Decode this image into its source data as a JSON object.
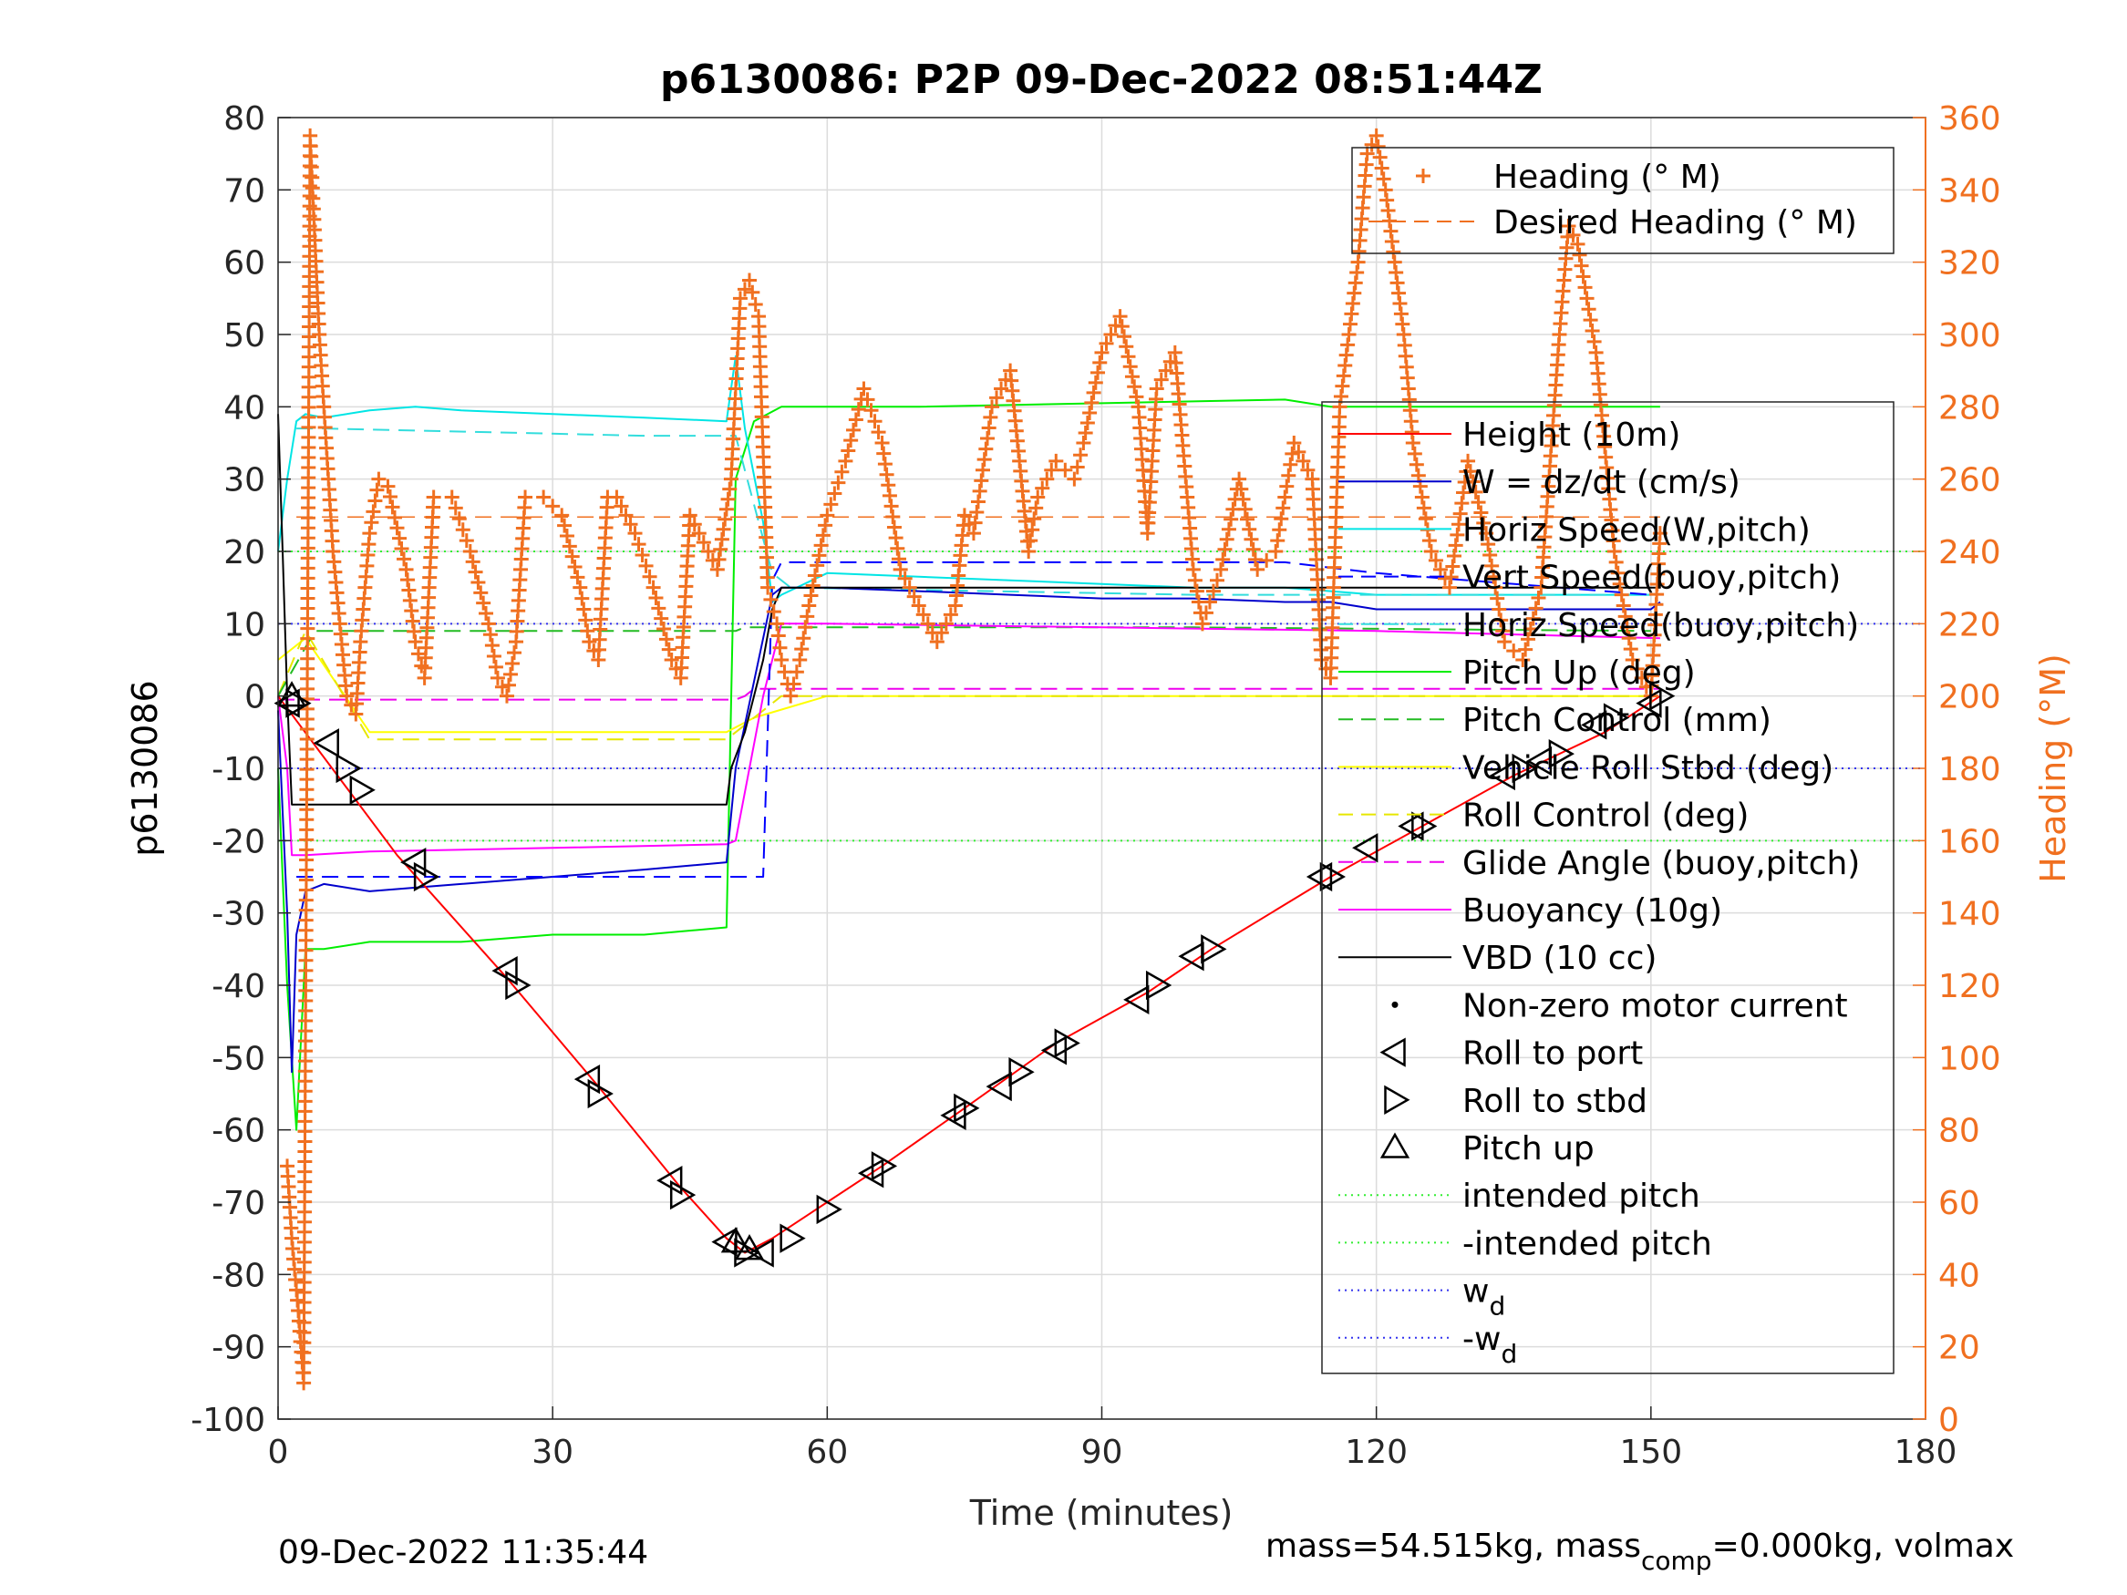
{
  "chart_data": {
    "type": "line",
    "title": "p6130086: P2P 09-Dec-2022 08:51:44Z",
    "xlabel": "Time (minutes)",
    "ylabel": "p6130086",
    "y2label": "Heading (°M)",
    "xlim": [
      0,
      180
    ],
    "ylim": [
      -100,
      80
    ],
    "y2lim": [
      0,
      360
    ],
    "xticks": [
      "0",
      "30",
      "60",
      "90",
      "120",
      "150",
      "180"
    ],
    "yticks": [
      "80",
      "70",
      "60",
      "50",
      "40",
      "30",
      "20",
      "10",
      "0",
      "-10",
      "-20",
      "-30",
      "-40",
      "-50",
      "-60",
      "-70",
      "-80",
      "-90",
      "-100"
    ],
    "y2ticks": [
      "360",
      "340",
      "320",
      "300",
      "280",
      "260",
      "240",
      "220",
      "200",
      "180",
      "160",
      "140",
      "120",
      "100",
      "80",
      "60",
      "40",
      "20",
      "0"
    ],
    "grid": true,
    "footer_left": "09-Dec-2022 11:35:44",
    "footer_right": {
      "a": "mass=54.515kg, mass",
      "sub": "comp",
      "b": "=0.000kg, volmax"
    },
    "colors": {
      "height": "#ff0000",
      "w": "#0000cc",
      "horiz_w": "#00e5e5",
      "vert_buoy": "#0000ff",
      "horiz_buoy": "#33dddd",
      "pitch": "#00ee00",
      "pitch_ctl": "#22bb22",
      "roll": "#ffff00",
      "roll_ctl": "#e6e600",
      "glide": "#ee00ee",
      "buoy": "#ff00ff",
      "vbd": "#000000",
      "heading": "#f07020",
      "desired_heading": "#f07020",
      "intended": "#33ee33",
      "wd": "#3333ee"
    },
    "legend_heading": [
      {
        "label": "Heading (° M)",
        "style": "plus",
        "color": "#f07020"
      },
      {
        "label": "Desired Heading (° M)",
        "style": "dash",
        "color": "#f07020"
      }
    ],
    "legend_main": [
      {
        "label": "Height (10m)",
        "style": "line",
        "color": "#ff0000"
      },
      {
        "label": "W = dz/dt (cm/s)",
        "style": "line",
        "color": "#0000cc"
      },
      {
        "label": "Horiz Speed(W,pitch)",
        "style": "line",
        "color": "#00e5e5"
      },
      {
        "label": "Vert Speed(buoy,pitch)",
        "style": "dash",
        "color": "#0000ff"
      },
      {
        "label": "Horiz Speed(buoy,pitch)",
        "style": "dash",
        "color": "#33dddd"
      },
      {
        "label": "Pitch Up (deg)",
        "style": "line",
        "color": "#00ee00"
      },
      {
        "label": "Pitch Control (mm)",
        "style": "dash",
        "color": "#22bb22"
      },
      {
        "label": "Vehicle Roll Stbd (deg)",
        "style": "line",
        "color": "#ffff00"
      },
      {
        "label": "Roll Control (deg)",
        "style": "dash",
        "color": "#e6e600"
      },
      {
        "label": "Glide Angle (buoy,pitch)",
        "style": "dash",
        "color": "#ee00ee"
      },
      {
        "label": "Buoyancy (10g)",
        "style": "line",
        "color": "#ff00ff"
      },
      {
        "label": "VBD (10 cc)",
        "style": "line",
        "color": "#000000"
      },
      {
        "label": "Non-zero motor current",
        "style": "dot",
        "color": "#000000"
      },
      {
        "label": "Roll to port",
        "style": "tri-left",
        "color": "#000000"
      },
      {
        "label": "Roll to stbd",
        "style": "tri-right",
        "color": "#000000"
      },
      {
        "label": "Pitch up",
        "style": "tri-up",
        "color": "#000000"
      },
      {
        "label": "intended pitch",
        "style": "dotted",
        "color": "#33ee33"
      },
      {
        "label": "-intended pitch",
        "style": "dotted",
        "color": "#33ee33"
      },
      {
        "label": "w",
        "sub": "d",
        "style": "dotted",
        "color": "#3333ee"
      },
      {
        "label": "-w",
        "sub": "d",
        "style": "dotted",
        "color": "#3333ee"
      }
    ],
    "series": [
      {
        "name": "Height (10m)",
        "x": [
          0,
          13,
          25,
          35,
          44,
          49,
          51,
          54,
          60,
          66,
          75,
          85,
          95,
          102,
          115,
          125,
          135,
          145,
          151
        ],
        "y": [
          0,
          -22,
          -39,
          -54,
          -68,
          -75,
          -77,
          -75,
          -70,
          -65,
          -57,
          -48,
          -41,
          -35,
          -25,
          -18,
          -11,
          -5,
          0
        ]
      },
      {
        "name": "W = dz/dt (cm/s)",
        "x": [
          0,
          1,
          1.5,
          2,
          3,
          5,
          10,
          20,
          30,
          40,
          49,
          50,
          53,
          54,
          55,
          60,
          70,
          80,
          90,
          100,
          110,
          115,
          120,
          130,
          140,
          150,
          151
        ],
        "y": [
          -2,
          -30,
          -52,
          -33,
          -27,
          -26,
          -27,
          -26,
          -25,
          -24,
          -23,
          -10,
          8,
          14,
          15,
          15,
          14.5,
          14,
          13.5,
          13.5,
          13,
          13,
          12,
          12,
          12,
          12,
          13
        ]
      },
      {
        "name": "Horiz Speed(W,pitch)",
        "x": [
          0,
          1,
          2,
          3,
          5,
          10,
          15,
          20,
          30,
          40,
          49,
          50,
          51,
          53,
          54,
          55,
          60,
          70,
          80,
          90,
          100,
          110,
          115,
          120,
          130,
          140,
          150
        ],
        "y": [
          20,
          30,
          38,
          39,
          38.5,
          39.5,
          40,
          39.5,
          39,
          38.5,
          38,
          47,
          37,
          24,
          13,
          14,
          17,
          16.5,
          16,
          15.5,
          15,
          15,
          14.5,
          14,
          14,
          14,
          14
        ]
      },
      {
        "name": "Vert Speed(buoy,pitch)",
        "x": [
          2,
          53,
          54,
          55,
          75,
          110,
          120,
          150
        ],
        "y": [
          -25,
          -25,
          16,
          18.5,
          18.5,
          18.5,
          17,
          14
        ]
      },
      {
        "name": "Horiz Speed(buoy,pitch)",
        "x": [
          2,
          5,
          40,
          50,
          54,
          56,
          100,
          150
        ],
        "y": [
          37,
          37,
          36,
          36,
          17,
          15,
          14,
          14
        ]
      },
      {
        "name": "Pitch Up (deg)",
        "x": [
          0,
          1,
          2,
          3,
          5,
          10,
          20,
          30,
          40,
          49,
          50,
          52,
          55,
          70,
          90,
          110,
          115,
          130,
          145,
          150,
          151
        ],
        "y": [
          -10,
          -40,
          -60,
          -35,
          -35,
          -34,
          -34,
          -33,
          -33,
          -32,
          30,
          38,
          40,
          40,
          40.5,
          41,
          40,
          40,
          40,
          40,
          40
        ]
      },
      {
        "name": "Pitch Control (mm)",
        "x": [
          0,
          4,
          50,
          51,
          56,
          100,
          150
        ],
        "y": [
          0,
          9,
          9,
          9.5,
          9.5,
          9.5,
          9
        ]
      },
      {
        "name": "Vehicle Roll Stbd (deg)",
        "x": [
          0,
          3,
          10,
          20,
          30,
          40,
          49,
          52,
          60,
          75,
          90,
          105,
          115,
          130,
          150
        ],
        "y": [
          5,
          8,
          -5,
          -5,
          -5,
          -5,
          -5,
          -3,
          0,
          0,
          0,
          0,
          0,
          0,
          0
        ]
      },
      {
        "name": "Roll Control (deg)",
        "x": [
          0,
          3,
          10,
          20,
          30,
          40,
          49,
          55,
          70,
          90,
          110,
          130,
          150
        ],
        "y": [
          0,
          9,
          -6,
          -6,
          -6,
          -6,
          -6,
          0,
          0,
          0,
          0,
          0,
          0
        ]
      },
      {
        "name": "Glide Angle (buoy,pitch)",
        "x": [
          0,
          50,
          51,
          52,
          151
        ],
        "y": [
          -0.5,
          -0.5,
          0,
          1,
          1
        ]
      },
      {
        "name": "Buoyancy (10g)",
        "x": [
          0,
          1,
          1.5,
          2,
          3,
          10,
          30,
          49,
          50,
          53,
          55,
          60,
          90,
          120,
          151
        ],
        "y": [
          0,
          -10,
          -22,
          -22,
          -22,
          -21.5,
          -21,
          -20.5,
          -20,
          0,
          10,
          10,
          9.5,
          9,
          8
        ]
      },
      {
        "name": "VBD (10 cc)",
        "x": [
          0,
          0.5,
          1,
          1.5,
          2,
          49,
          49.5,
          51,
          53,
          54,
          55,
          151
        ],
        "y": [
          39,
          20,
          0,
          -15,
          -15,
          -15,
          -10,
          -5,
          5,
          12,
          15,
          15
        ]
      },
      {
        "name": "Heading (° M)",
        "x": [
          1,
          1.5,
          2.2,
          2.8,
          3.5,
          4.5,
          6,
          7.5,
          8.5,
          9,
          10,
          11,
          12,
          14,
          15,
          16,
          17,
          19,
          21,
          23,
          24,
          25,
          26,
          27,
          29,
          31,
          33,
          34,
          35,
          36,
          37,
          39,
          41,
          43,
          44,
          45,
          46,
          48,
          49.5,
          50.5,
          51.5,
          52.5,
          53.5,
          54.5,
          55,
          56,
          57,
          58,
          60,
          62,
          64,
          66,
          68,
          70,
          72,
          74,
          75,
          76,
          78,
          80,
          82,
          83,
          85,
          87,
          88,
          90,
          92,
          94,
          95,
          96,
          98,
          100,
          101,
          103,
          105,
          107,
          109,
          110,
          111,
          113,
          114,
          115,
          116,
          118,
          119,
          120,
          121,
          122,
          123,
          124,
          126,
          128,
          130,
          132,
          134,
          136,
          138,
          140,
          141,
          142,
          144,
          146,
          148,
          150,
          151
        ],
        "y": [
          70,
          50,
          30,
          10,
          355,
          300,
          240,
          200,
          195,
          215,
          245,
          260,
          258,
          235,
          215,
          205,
          255,
          255,
          240,
          220,
          205,
          200,
          215,
          255,
          255,
          250,
          230,
          215,
          210,
          255,
          255,
          245,
          230,
          210,
          205,
          250,
          245,
          235,
          260,
          310,
          315,
          305,
          230,
          220,
          210,
          200,
          210,
          225,
          250,
          265,
          285,
          270,
          235,
          225,
          215,
          225,
          250,
          245,
          280,
          290,
          240,
          255,
          265,
          260,
          270,
          295,
          305,
          280,
          245,
          285,
          295,
          235,
          220,
          235,
          260,
          235,
          240,
          255,
          270,
          260,
          210,
          205,
          280,
          320,
          350,
          355,
          340,
          320,
          300,
          270,
          240,
          230,
          265,
          245,
          215,
          210,
          230,
          300,
          330,
          325,
          295,
          240,
          210,
          200,
          245
        ]
      },
      {
        "name": "Desired Heading (° M)",
        "x": [
          2,
          151
        ],
        "y": [
          249.5,
          249.5
        ]
      }
    ],
    "markers_tri_left": [
      [
        1.2,
        -1
      ],
      [
        5.5,
        -6.5
      ],
      [
        15,
        -23
      ],
      [
        25,
        -38
      ],
      [
        34,
        -53
      ],
      [
        43,
        -67
      ],
      [
        49,
        -75.5
      ],
      [
        53,
        -77
      ],
      [
        65,
        -66
      ],
      [
        74,
        -58
      ],
      [
        79,
        -54
      ],
      [
        85,
        -49
      ],
      [
        94,
        -42
      ],
      [
        100,
        -36
      ],
      [
        114,
        -25
      ],
      [
        119,
        -21
      ],
      [
        124,
        -18
      ],
      [
        134,
        -11
      ],
      [
        138,
        -9
      ],
      [
        144,
        -4
      ],
      [
        150,
        -1
      ]
    ],
    "markers_tri_right": [
      [
        2,
        -1
      ],
      [
        7.5,
        -10
      ],
      [
        9,
        -13
      ],
      [
        16,
        -25
      ],
      [
        26,
        -40
      ],
      [
        35,
        -55
      ],
      [
        44,
        -69
      ],
      [
        51,
        -77
      ],
      [
        56,
        -75
      ],
      [
        60,
        -71
      ],
      [
        66,
        -65
      ],
      [
        75,
        -57
      ],
      [
        81,
        -52
      ],
      [
        86,
        -48
      ],
      [
        96,
        -40
      ],
      [
        102,
        -35
      ],
      [
        115,
        -25
      ],
      [
        125,
        -18
      ],
      [
        136,
        -10
      ],
      [
        140,
        -8
      ],
      [
        146,
        -3
      ],
      [
        151,
        0
      ]
    ],
    "markers_tri_up": [
      [
        1.5,
        0
      ],
      [
        50,
        -75.5
      ],
      [
        51.5,
        -76.5
      ]
    ],
    "reference_lines": [
      {
        "name": "intended pitch",
        "y": 20
      },
      {
        "name": "-intended pitch",
        "y": -20
      },
      {
        "name": "w_d",
        "y": 10
      },
      {
        "name": "-w_d",
        "y": -10
      }
    ]
  }
}
